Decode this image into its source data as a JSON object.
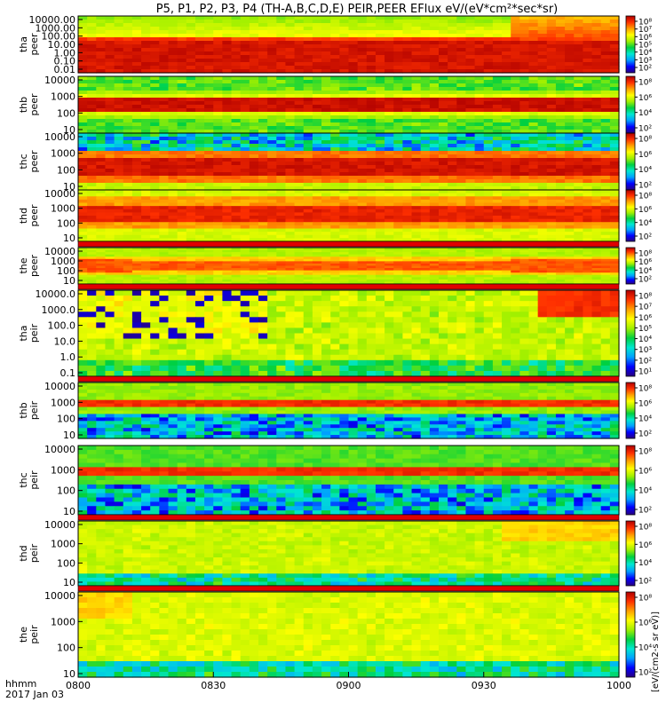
{
  "title": "P5, P1, P2, P3, P4 (TH-A,B,C,D,E) PEIR,PEER EFlux eV/(eV*cm²*sec*sr)",
  "footer": {
    "time_label": "hhmm",
    "date_label": "2017 Jan 03"
  },
  "colorbar_label": "[eV/(cm2-s sr eV)]",
  "colorbar_colors": [
    "#2a0080",
    "#0000ff",
    "#00a0ff",
    "#00e8d0",
    "#00d040",
    "#a0f000",
    "#ffff00",
    "#ffa000",
    "#ff3000",
    "#b00000"
  ],
  "chart_data": {
    "type": "heatmap",
    "x_ticks": [
      "0800",
      "0830",
      "0900",
      "0930",
      "1000"
    ],
    "x_range": [
      "0800",
      "1000"
    ],
    "panels": [
      {
        "name": "tha-peer",
        "label": [
          "tha",
          "peer"
        ],
        "yticks": [
          "10000.00",
          "1000.00",
          "100.00",
          "10.00",
          "1.00",
          "0.10",
          "0.01"
        ],
        "cbar_ticks": [
          "10⁸",
          "10⁷",
          "10⁶",
          "10⁵",
          "10⁴",
          "10³",
          "10²"
        ]
      },
      {
        "name": "thb-peer",
        "label": [
          "thb",
          "peer"
        ],
        "yticks": [
          "10000",
          "1000",
          "100",
          "10"
        ],
        "cbar_ticks": [
          "10⁸",
          "10⁶",
          "10⁴",
          "10²"
        ]
      },
      {
        "name": "thc-peer",
        "label": [
          "thc",
          "peer"
        ],
        "yticks": [
          "10000",
          "1000",
          "100",
          "10"
        ],
        "cbar_ticks": [
          "10⁸",
          "10⁶",
          "10⁴",
          "10²"
        ]
      },
      {
        "name": "thd-peer",
        "label": [
          "thd",
          "peer"
        ],
        "yticks": [
          "10000",
          "1000",
          "100",
          "10"
        ],
        "cbar_ticks": [
          "10⁸",
          "10⁶",
          "10⁴",
          "10²"
        ]
      },
      {
        "name": "the-peer",
        "label": [
          "the",
          "peer"
        ],
        "yticks": [
          "10000",
          "1000",
          "100",
          "10"
        ],
        "cbar_ticks": [
          "10⁸",
          "10⁶",
          "10⁴",
          "10²"
        ]
      },
      {
        "name": "tha-peir",
        "label": [
          "tha",
          "peir"
        ],
        "yticks": [
          "10000.0",
          "1000.0",
          "100.0",
          "10.0",
          "1.0",
          "0.1"
        ],
        "cbar_ticks": [
          "10⁸",
          "10⁷",
          "10⁶",
          "10⁵",
          "10⁴",
          "10³",
          "10²",
          "10¹"
        ]
      },
      {
        "name": "thb-peir",
        "label": [
          "thb",
          "peir"
        ],
        "yticks": [
          "10000",
          "1000",
          "100",
          "10"
        ],
        "cbar_ticks": [
          "10⁸",
          "10⁶",
          "10⁴",
          "10²"
        ]
      },
      {
        "name": "thc-peir",
        "label": [
          "thc",
          "peir"
        ],
        "yticks": [
          "10000",
          "1000",
          "100",
          "10"
        ],
        "cbar_ticks": [
          "10⁸",
          "10⁶",
          "10⁴",
          "10²"
        ]
      },
      {
        "name": "thd-peir",
        "label": [
          "thd",
          "peir"
        ],
        "yticks": [
          "10000",
          "1000",
          "100",
          "10"
        ],
        "cbar_ticks": [
          "10⁸",
          "10⁶",
          "10⁴",
          "10²"
        ]
      },
      {
        "name": "the-peir",
        "label": [
          "the",
          "peir"
        ],
        "yticks": [
          "10000",
          "1000",
          "100",
          "10"
        ],
        "cbar_ticks": [
          "10⁸",
          "10⁶",
          "10⁴",
          "10²"
        ]
      }
    ]
  }
}
